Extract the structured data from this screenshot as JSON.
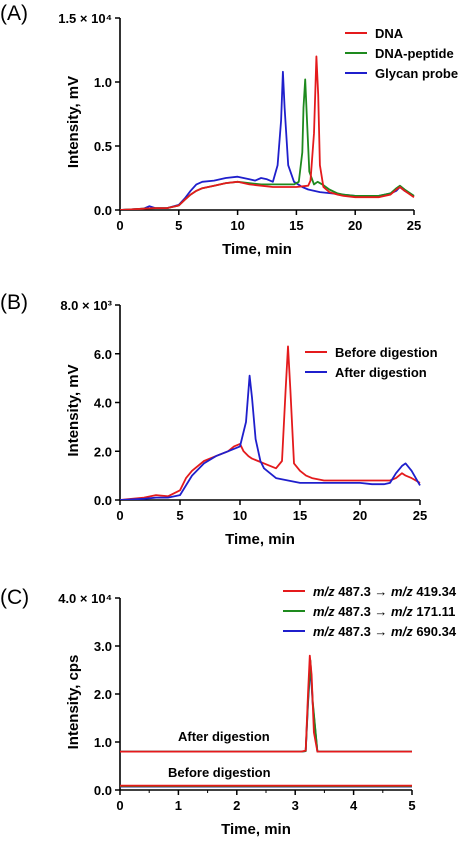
{
  "chart_data": [
    {
      "panel": "(A)",
      "type": "line",
      "xlabel": "Time, min",
      "ylabel": "Intensity, mV",
      "xlim": [
        0,
        25
      ],
      "ylim": [
        0,
        15000
      ],
      "xticks": [
        0,
        5,
        10,
        15,
        20,
        25
      ],
      "xtick_labels": [
        "0",
        "5",
        "10",
        "15",
        "20",
        "25"
      ],
      "yticks": [
        0,
        5000,
        10000,
        15000
      ],
      "ytick_labels": [
        "0.0",
        "0.5",
        "1.0",
        "1.5 × 10⁴"
      ],
      "legend_position": "top-right",
      "series": [
        {
          "name": "Glycan probe",
          "color": "#1f1fcc",
          "x": [
            0,
            2,
            2.5,
            3,
            4,
            5,
            5.5,
            6,
            6.5,
            7,
            8,
            9,
            10,
            11,
            11.5,
            12,
            12.5,
            13,
            13.4,
            13.7,
            13.85,
            14,
            14.3,
            14.8,
            15.5,
            16,
            17,
            18,
            19,
            20,
            21,
            22,
            23,
            23.5,
            23.8,
            24.2,
            25
          ],
          "y": [
            0,
            100,
            300,
            150,
            150,
            400,
            900,
            1500,
            2000,
            2200,
            2300,
            2500,
            2600,
            2400,
            2300,
            2500,
            2400,
            2200,
            3500,
            7000,
            10800,
            8000,
            3500,
            2200,
            1800,
            1600,
            1400,
            1300,
            1200,
            1100,
            1100,
            1100,
            1300,
            1500,
            1800,
            1500,
            1100
          ]
        },
        {
          "name": "DNA-peptide",
          "color": "#1e8a1e",
          "x": [
            0,
            2,
            3,
            4,
            5,
            5.5,
            6,
            6.5,
            7,
            8,
            9,
            10,
            11,
            12,
            13,
            14,
            14.8,
            15.2,
            15.5,
            15.6,
            15.75,
            15.9,
            16.1,
            16.5,
            16.8,
            17.2,
            17.8,
            18.5,
            19,
            20,
            21,
            22,
            23,
            23.5,
            23.8,
            24.2,
            25
          ],
          "y": [
            0,
            100,
            150,
            150,
            350,
            800,
            1200,
            1500,
            1700,
            1900,
            2100,
            2200,
            2100,
            2000,
            2000,
            2000,
            2000,
            2200,
            4500,
            8000,
            10200,
            7000,
            3000,
            2000,
            2200,
            2000,
            1600,
            1300,
            1200,
            1100,
            1100,
            1100,
            1300,
            1700,
            1900,
            1600,
            1100
          ]
        },
        {
          "name": "DNA",
          "color": "#e41a1c",
          "x": [
            0,
            2,
            3,
            4,
            5,
            5.5,
            6,
            6.5,
            7,
            8,
            9,
            10,
            11,
            12,
            13,
            14,
            15,
            16,
            16.2,
            16.5,
            16.7,
            16.85,
            17,
            17.3,
            17.8,
            18.5,
            19,
            20,
            21,
            22,
            23,
            23.5,
            23.8,
            24.2,
            25
          ],
          "y": [
            0,
            100,
            150,
            150,
            350,
            800,
            1200,
            1500,
            1700,
            1900,
            2100,
            2200,
            2000,
            1900,
            1800,
            1800,
            1800,
            1900,
            2300,
            6000,
            12000,
            9000,
            3500,
            1800,
            1400,
            1200,
            1100,
            1000,
            1000,
            1000,
            1200,
            1600,
            1800,
            1500,
            1000
          ]
        }
      ]
    },
    {
      "panel": "(B)",
      "type": "line",
      "xlabel": "Time, min",
      "ylabel": "Intensity, mV",
      "xlim": [
        0,
        25
      ],
      "ylim": [
        0,
        8000
      ],
      "xticks": [
        0,
        5,
        10,
        15,
        20,
        25
      ],
      "xtick_labels": [
        "0",
        "5",
        "10",
        "15",
        "20",
        "25"
      ],
      "yticks": [
        0,
        2000,
        4000,
        6000,
        8000
      ],
      "ytick_labels": [
        "0.0",
        "2.0",
        "4.0",
        "6.0",
        "8.0 × 10³"
      ],
      "legend_position": "top-right",
      "series": [
        {
          "name": "Before digestion",
          "color": "#e41a1c",
          "x": [
            0,
            2,
            3,
            4,
            5,
            5.5,
            6,
            7,
            8,
            9,
            9.5,
            10,
            10.3,
            10.7,
            11,
            11.5,
            12,
            13,
            13.5,
            13.8,
            14,
            14.2,
            14.5,
            15,
            15.5,
            16,
            17,
            18,
            19,
            20,
            21,
            22,
            22.5,
            23,
            23.5,
            23.8,
            24.3,
            25
          ],
          "y": [
            0,
            100,
            200,
            150,
            400,
            900,
            1200,
            1600,
            1800,
            2000,
            2200,
            2300,
            2000,
            1800,
            1700,
            1600,
            1500,
            1300,
            1600,
            4500,
            6300,
            4500,
            1500,
            1200,
            1000,
            900,
            800,
            800,
            800,
            800,
            800,
            800,
            800,
            900,
            1100,
            1000,
            900,
            700
          ]
        },
        {
          "name": "After digestion",
          "color": "#1f1fcc",
          "x": [
            0,
            2,
            3,
            4,
            5,
            5.5,
            6,
            7,
            8,
            9,
            10,
            10.5,
            10.8,
            11,
            11.3,
            11.7,
            12,
            13,
            14,
            15,
            16,
            17,
            18,
            19,
            20,
            21,
            22,
            22.5,
            23,
            23.5,
            23.8,
            24.3,
            25
          ],
          "y": [
            0,
            50,
            100,
            100,
            200,
            600,
            1000,
            1500,
            1800,
            2000,
            2200,
            3200,
            5100,
            4200,
            2500,
            1600,
            1300,
            900,
            800,
            700,
            700,
            700,
            700,
            700,
            700,
            650,
            650,
            700,
            1100,
            1400,
            1500,
            1200,
            600
          ]
        }
      ]
    },
    {
      "panel": "(C)",
      "type": "line",
      "xlabel": "Time, min",
      "ylabel": "Intensity, cps",
      "xlim": [
        0,
        5
      ],
      "ylim": [
        0,
        40000
      ],
      "xticks": [
        0,
        1,
        2,
        3,
        4,
        5
      ],
      "xtick_labels": [
        "0",
        "1",
        "2",
        "3",
        "4",
        "5"
      ],
      "yticks": [
        0,
        10000,
        20000,
        30000,
        40000
      ],
      "ytick_labels": [
        "0.0",
        "1.0",
        "2.0",
        "3.0",
        "4.0 × 10⁴"
      ],
      "legend_position": "top-right",
      "annotations": [
        "After digestion",
        "Before digestion"
      ],
      "series": [
        {
          "name": "m/z 487.3 → m/z 690.34",
          "color": "#1f1fcc",
          "x": [
            0,
            5
          ],
          "y": [
            700,
            700
          ]
        },
        {
          "name": "m/z 487.3 → m/z 171.11",
          "color": "#1e8a1e",
          "x": [
            0,
            5
          ],
          "y": [
            800,
            800
          ]
        },
        {
          "name": "m/z 487.3 → m/z 419.34",
          "color": "#e41a1c",
          "x": [
            0,
            5
          ],
          "y": [
            900,
            900
          ]
        },
        {
          "name": "After digestion m/z 487.3 → m/z 690.34",
          "color": "#1f1fcc",
          "x": [
            0,
            3.1,
            3.18,
            3.22,
            3.26,
            3.3,
            3.38,
            5
          ],
          "y": [
            8000,
            8000,
            8100,
            18000,
            26000,
            18000,
            8000,
            8000
          ]
        },
        {
          "name": "After digestion m/z 487.3 → m/z 171.11",
          "color": "#1e8a1e",
          "x": [
            0,
            3.1,
            3.18,
            3.22,
            3.26,
            3.3,
            3.38,
            5
          ],
          "y": [
            8000,
            8000,
            8100,
            18500,
            27000,
            18500,
            8000,
            8000
          ]
        },
        {
          "name": "After digestion m/z 487.3 → m/z 419.34",
          "color": "#e41a1c",
          "x": [
            0,
            3.1,
            3.18,
            3.22,
            3.25,
            3.28,
            3.32,
            3.38,
            5
          ],
          "y": [
            8000,
            8000,
            8200,
            20000,
            28000,
            24000,
            12000,
            8000,
            8000
          ]
        }
      ]
    }
  ]
}
